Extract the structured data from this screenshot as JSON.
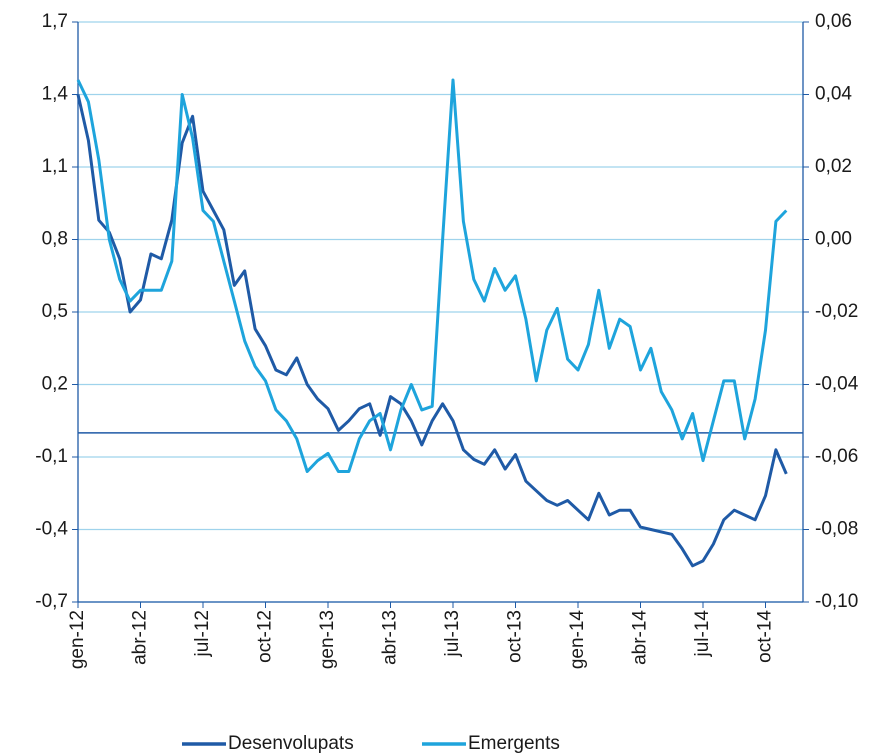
{
  "chart_data": {
    "type": "line",
    "categories": [
      "gen-12",
      null,
      null,
      null,
      null,
      null,
      "abr-12",
      null,
      null,
      null,
      null,
      null,
      "jul-12",
      null,
      null,
      null,
      null,
      null,
      "oct-12",
      null,
      null,
      null,
      null,
      null,
      "gen-13",
      null,
      null,
      null,
      null,
      null,
      "abr-13",
      null,
      null,
      null,
      null,
      null,
      "jul-13",
      null,
      null,
      null,
      null,
      null,
      "oct-13",
      null,
      null,
      null,
      null,
      null,
      "gen-14",
      null,
      null,
      null,
      null,
      null,
      "abr-14",
      null,
      null,
      null,
      null,
      null,
      "jul-14",
      null,
      null,
      null,
      null,
      null,
      "oct-14",
      null,
      null
    ],
    "series": [
      {
        "name": "Desenvolupats",
        "color": "#1f5aa6",
        "axis": "y",
        "values": [
          1.4,
          1.21,
          0.88,
          0.83,
          0.72,
          0.5,
          0.55,
          0.74,
          0.72,
          0.88,
          1.2,
          1.31,
          1.0,
          0.92,
          0.84,
          0.61,
          0.67,
          0.43,
          0.36,
          0.26,
          0.24,
          0.31,
          0.2,
          0.14,
          0.1,
          0.01,
          0.05,
          0.1,
          0.12,
          -0.01,
          0.15,
          0.12,
          0.05,
          -0.05,
          0.05,
          0.12,
          0.05,
          -0.07,
          -0.11,
          -0.13,
          -0.07,
          -0.15,
          -0.09,
          -0.2,
          -0.24,
          -0.28,
          -0.3,
          -0.28,
          -0.32,
          -0.36,
          -0.25,
          -0.34,
          -0.32,
          -0.32,
          -0.39,
          -0.4,
          -0.41,
          -0.42,
          -0.48,
          -0.55,
          -0.53,
          -0.46,
          -0.36,
          -0.32,
          -0.34,
          -0.36,
          -0.26,
          -0.07,
          -0.17
        ]
      },
      {
        "name": "Emergents",
        "color": "#1ea4dc",
        "axis": "y2",
        "values": [
          0.044,
          0.038,
          0.022,
          0.0,
          -0.011,
          -0.017,
          -0.014,
          -0.014,
          -0.014,
          -0.006,
          0.04,
          0.028,
          0.008,
          0.005,
          -0.006,
          -0.017,
          -0.028,
          -0.035,
          -0.039,
          -0.047,
          -0.05,
          -0.055,
          -0.064,
          -0.061,
          -0.059,
          -0.064,
          -0.064,
          -0.055,
          -0.05,
          -0.048,
          -0.058,
          -0.047,
          -0.04,
          -0.047,
          -0.046,
          0.0,
          0.044,
          0.005,
          -0.011,
          -0.017,
          -0.008,
          -0.014,
          -0.01,
          -0.022,
          -0.039,
          -0.025,
          -0.019,
          -0.033,
          -0.036,
          -0.029,
          -0.014,
          -0.03,
          -0.022,
          -0.024,
          -0.036,
          -0.03,
          -0.042,
          -0.047,
          -0.055,
          -0.048,
          -0.061,
          -0.05,
          -0.039,
          -0.039,
          -0.055,
          -0.044,
          -0.025,
          0.005,
          0.008
        ]
      }
    ],
    "ylim": [
      -0.7,
      1.7
    ],
    "yticks": [
      {
        "value": -0.7,
        "label": "-0,7"
      },
      {
        "value": -0.4,
        "label": "-0,4"
      },
      {
        "value": -0.1,
        "label": "-0,1"
      },
      {
        "value": 0.2,
        "label": "0,2"
      },
      {
        "value": 0.5,
        "label": "0,5"
      },
      {
        "value": 0.8,
        "label": "0,8"
      },
      {
        "value": 1.1,
        "label": "1,1"
      },
      {
        "value": 1.4,
        "label": "1,4"
      },
      {
        "value": 1.7,
        "label": "1,7"
      }
    ],
    "y2lim": [
      -0.1,
      0.06
    ],
    "y2ticks": [
      {
        "value": -0.1,
        "label": "-0,10"
      },
      {
        "value": -0.08,
        "label": "-0,08"
      },
      {
        "value": -0.06,
        "label": "-0,06"
      },
      {
        "value": -0.04,
        "label": "-0,04"
      },
      {
        "value": -0.02,
        "label": "-0,02"
      },
      {
        "value": 0.0,
        "label": "0,00"
      },
      {
        "value": 0.02,
        "label": "0,02"
      },
      {
        "value": 0.04,
        "label": "0,04"
      },
      {
        "value": 0.06,
        "label": "0,06"
      }
    ],
    "hline": 0,
    "grid": true,
    "legend": "bottom"
  }
}
